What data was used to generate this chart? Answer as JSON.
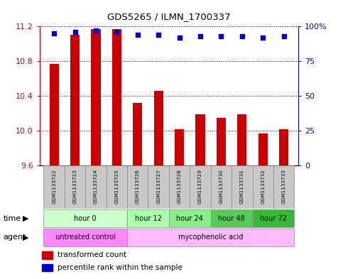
{
  "title": "GDS5265 / ILMN_1700337",
  "samples": [
    "GSM1133722",
    "GSM1133723",
    "GSM1133724",
    "GSM1133725",
    "GSM1133726",
    "GSM1133727",
    "GSM1133728",
    "GSM1133729",
    "GSM1133730",
    "GSM1133731",
    "GSM1133732",
    "GSM1133733"
  ],
  "bar_values": [
    10.77,
    11.1,
    11.17,
    11.17,
    10.32,
    10.46,
    10.02,
    10.19,
    10.15,
    10.19,
    9.97,
    10.02
  ],
  "percentile_values": [
    95,
    96,
    97,
    96,
    94,
    94,
    92,
    93,
    93,
    93,
    92,
    93
  ],
  "bar_color": "#cc0000",
  "dot_color": "#0000cc",
  "y_min": 9.6,
  "y_max": 11.2,
  "y_ticks": [
    9.6,
    10.0,
    10.4,
    10.8,
    11.2
  ],
  "y2_ticks": [
    0,
    25,
    50,
    75,
    100
  ],
  "time_groups": [
    {
      "label": "hour 0",
      "start": 0,
      "end": 4,
      "color": "#ccffcc"
    },
    {
      "label": "hour 12",
      "start": 4,
      "end": 6,
      "color": "#aaffaa"
    },
    {
      "label": "hour 24",
      "start": 6,
      "end": 8,
      "color": "#88ee88"
    },
    {
      "label": "hour 48",
      "start": 8,
      "end": 10,
      "color": "#55cc55"
    },
    {
      "label": "hour 72",
      "start": 10,
      "end": 12,
      "color": "#33bb33"
    }
  ],
  "agent_groups": [
    {
      "label": "untreated control",
      "start": 0,
      "end": 4,
      "color": "#ff88ff"
    },
    {
      "label": "mycophenolic acid",
      "start": 4,
      "end": 12,
      "color": "#ffbbff"
    }
  ],
  "legend_bar_label": "transformed count",
  "legend_dot_label": "percentile rank within the sample",
  "time_row_label": "time",
  "agent_row_label": "agent",
  "sample_box_color": "#c8c8c8",
  "bar_width": 0.45
}
